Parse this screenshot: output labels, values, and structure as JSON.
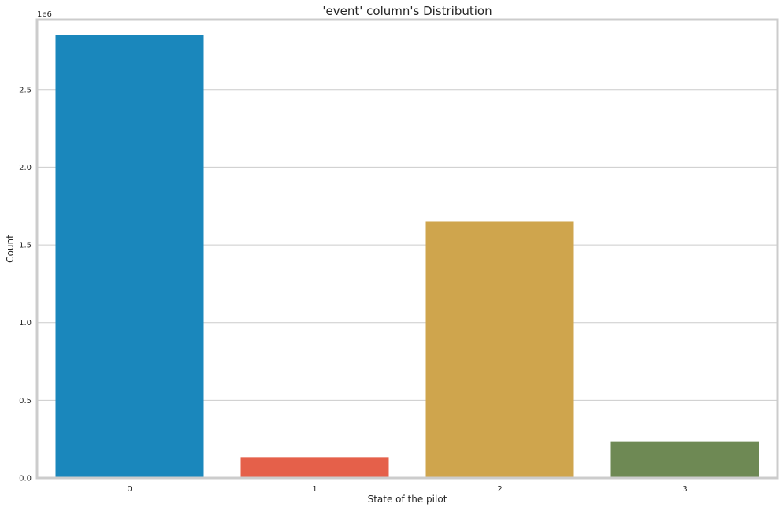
{
  "chart_data": {
    "type": "bar",
    "title": "'event' column's Distribution",
    "xlabel": "State of the pilot",
    "ylabel": "Count",
    "categories": [
      "0",
      "1",
      "2",
      "3"
    ],
    "values": [
      2850000,
      130000,
      1650000,
      235000
    ],
    "colors": [
      "#1a87bc",
      "#e5604a",
      "#cfa54d",
      "#6e8954"
    ],
    "ylim": [
      0,
      2950000
    ],
    "yticks": [
      0,
      500000,
      1000000,
      1500000,
      2000000,
      2500000
    ],
    "ytick_labels": [
      "0.0",
      "0.5",
      "1.0",
      "1.5",
      "2.0",
      "2.5"
    ],
    "y_offset_label": "1e6",
    "grid": true,
    "gridline_color": "#cccccc",
    "frame_color": "#cccccc"
  }
}
